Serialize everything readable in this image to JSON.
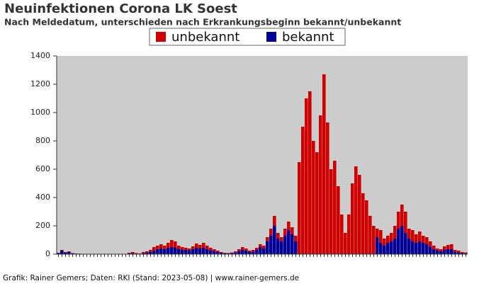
{
  "chart_data": {
    "type": "bar",
    "stacked": true,
    "title": "Neuinfektionen Corona LK Soest",
    "subtitle": "Nach Meldedatum, unterschieden nach Erkrankungsbeginn bekannt/unbekannt",
    "footer": "Grafik: Rainer Gemers; Daten: RKI (Stand: 2023-05-08) | www.rainer-gemers.de",
    "ylim": [
      0,
      1400
    ],
    "yticks": [
      0,
      200,
      400,
      600,
      800,
      1000,
      1200,
      1400
    ],
    "background": "#cccccc",
    "categories": [
      null,
      null,
      null,
      null,
      null,
      null,
      null,
      null,
      null,
      null,
      null,
      null,
      null,
      null,
      null,
      null,
      null,
      null,
      null,
      null,
      null,
      null,
      null,
      null,
      null,
      null,
      null,
      null,
      null,
      null,
      null,
      null,
      null,
      null,
      null,
      null,
      null,
      null,
      null,
      null,
      null,
      null,
      null,
      null,
      null,
      null,
      null,
      null,
      null,
      null,
      null,
      null,
      null,
      null,
      null,
      null,
      null,
      null,
      null,
      null,
      null,
      null,
      null,
      null,
      null,
      null,
      null,
      null,
      null,
      null,
      null,
      null,
      null,
      null,
      null,
      null,
      null,
      null,
      null,
      null,
      null,
      null,
      null,
      null,
      null,
      null,
      null,
      null,
      null,
      null,
      null,
      null,
      null,
      null,
      null,
      null,
      null,
      null,
      null,
      null,
      null,
      null,
      null,
      null,
      null,
      null,
      null,
      null,
      null,
      null,
      null,
      null,
      null,
      null,
      null,
      null
    ],
    "series": [
      {
        "name": "unbekannt",
        "color": "#d00000",
        "values": [
          2,
          5,
          3,
          5,
          2,
          1,
          1,
          1,
          1,
          1,
          1,
          1,
          1,
          1,
          1,
          1,
          1,
          1,
          1,
          1,
          5,
          7,
          4,
          2,
          7,
          10,
          15,
          25,
          25,
          30,
          25,
          35,
          50,
          45,
          25,
          20,
          15,
          12,
          20,
          30,
          25,
          35,
          25,
          17,
          13,
          10,
          5,
          4,
          3,
          4,
          8,
          13,
          20,
          15,
          10,
          12,
          15,
          20,
          20,
          30,
          50,
          70,
          40,
          30,
          50,
          60,
          50,
          40,
          650,
          900,
          1100,
          1150,
          800,
          720,
          980,
          1270,
          930,
          600,
          660,
          480,
          280,
          150,
          280,
          500,
          620,
          560,
          430,
          380,
          270,
          200,
          60,
          90,
          50,
          50,
          60,
          90,
          120,
          150,
          150,
          70,
          80,
          60,
          70,
          50,
          50,
          40,
          25,
          15,
          15,
          25,
          30,
          35,
          15,
          13,
          7,
          6
        ]
      },
      {
        "name": "bekannt",
        "color": "#000099",
        "values": [
          8,
          25,
          12,
          15,
          6,
          4,
          3,
          1,
          1,
          1,
          1,
          1,
          1,
          1,
          1,
          1,
          1,
          1,
          1,
          1,
          5,
          8,
          4,
          3,
          8,
          10,
          15,
          25,
          35,
          40,
          35,
          45,
          50,
          45,
          35,
          30,
          30,
          28,
          35,
          45,
          40,
          45,
          35,
          28,
          22,
          15,
          10,
          6,
          5,
          8,
          12,
          22,
          30,
          25,
          15,
          18,
          30,
          50,
          40,
          90,
          130,
          200,
          110,
          90,
          130,
          170,
          140,
          90,
          0,
          0,
          0,
          0,
          0,
          0,
          0,
          0,
          0,
          0,
          0,
          0,
          0,
          0,
          0,
          0,
          0,
          0,
          0,
          0,
          0,
          0,
          120,
          80,
          60,
          80,
          90,
          110,
          180,
          200,
          150,
          110,
          90,
          80,
          90,
          80,
          70,
          50,
          35,
          25,
          20,
          30,
          35,
          35,
          15,
          12,
          8,
          6
        ]
      }
    ]
  }
}
